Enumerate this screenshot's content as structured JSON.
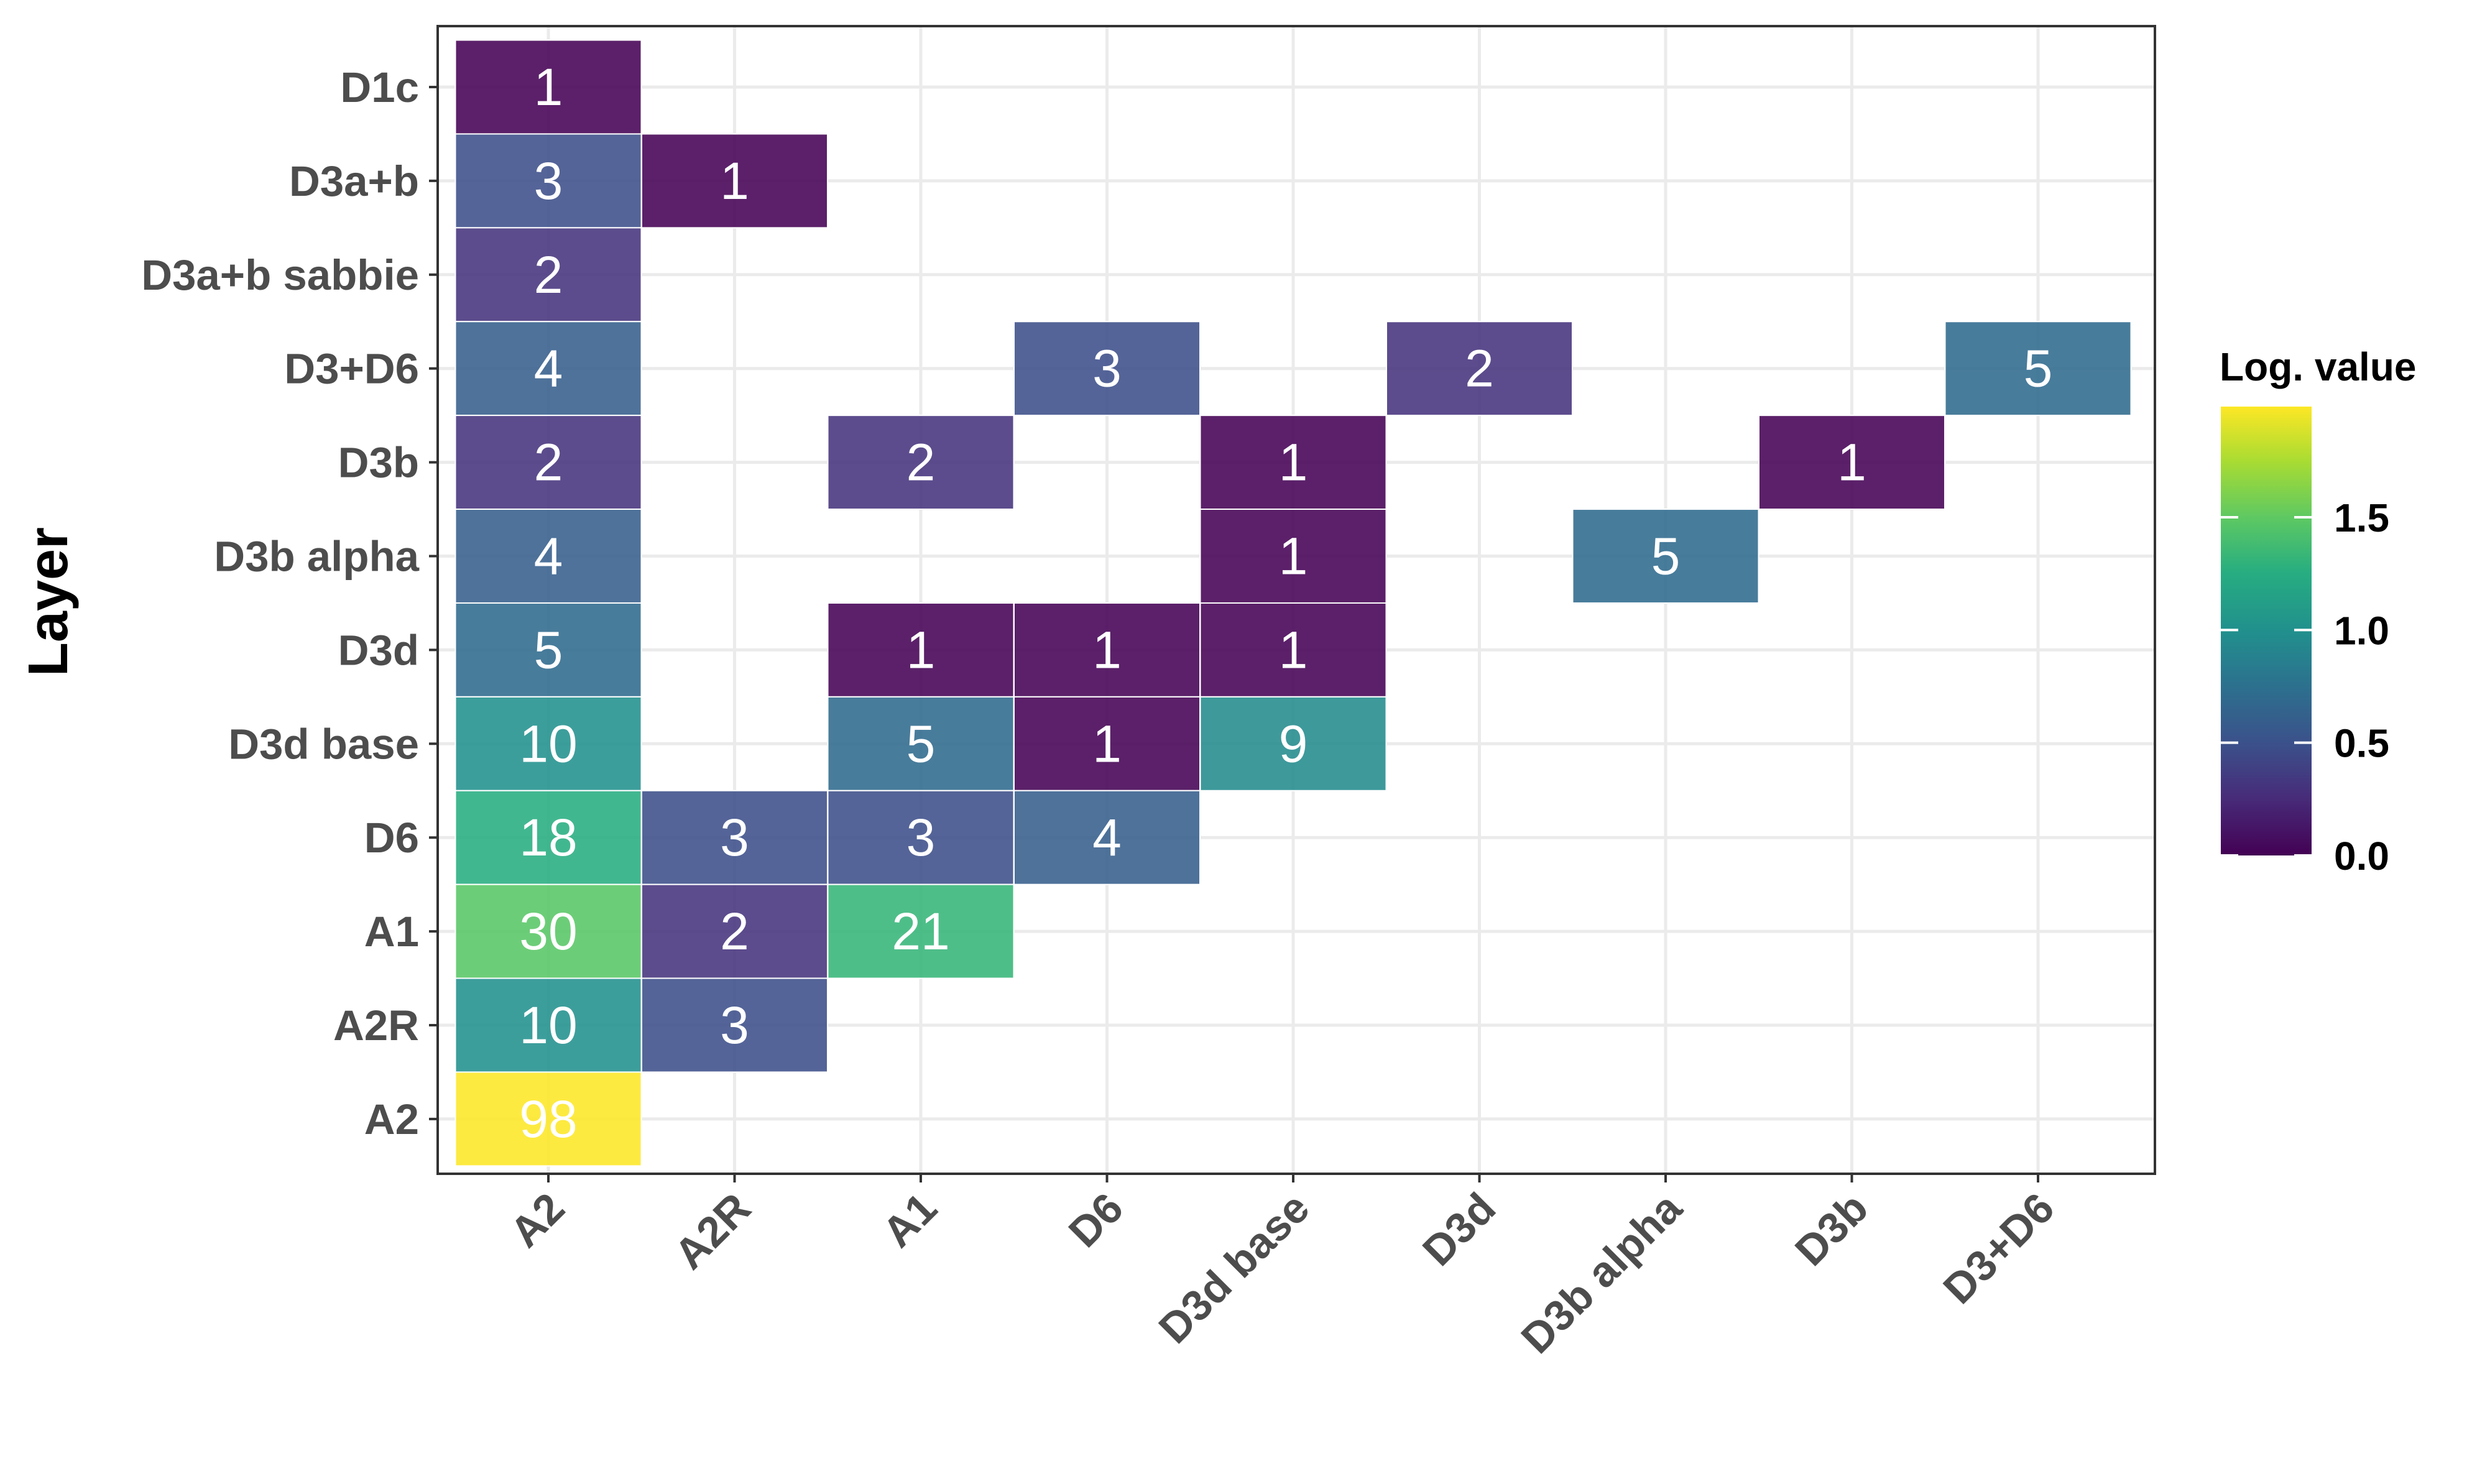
{
  "chart_data": {
    "type": "heatmap",
    "ylabel": "Layer",
    "xlabel": "",
    "x_categories": [
      "A2",
      "A2R",
      "A1",
      "D6",
      "D3d base",
      "D3d",
      "D3b alpha",
      "D3b",
      "D3+D6"
    ],
    "y_categories": [
      "D1c",
      "D3a+b",
      "D3a+b sabbie",
      "D3+D6",
      "D3b",
      "D3b alpha",
      "D3d",
      "D3d base",
      "D6",
      "A1",
      "A2R",
      "A2"
    ],
    "cells": [
      {
        "x": "A2",
        "y": "D1c",
        "value": 1
      },
      {
        "x": "A2",
        "y": "D3a+b",
        "value": 3
      },
      {
        "x": "A2R",
        "y": "D3a+b",
        "value": 1
      },
      {
        "x": "A2",
        "y": "D3a+b sabbie",
        "value": 2
      },
      {
        "x": "A2",
        "y": "D3+D6",
        "value": 4
      },
      {
        "x": "D6",
        "y": "D3+D6",
        "value": 3
      },
      {
        "x": "D3d",
        "y": "D3+D6",
        "value": 2
      },
      {
        "x": "D3+D6",
        "y": "D3+D6",
        "value": 5
      },
      {
        "x": "A2",
        "y": "D3b",
        "value": 2
      },
      {
        "x": "A1",
        "y": "D3b",
        "value": 2
      },
      {
        "x": "D3d base",
        "y": "D3b",
        "value": 1
      },
      {
        "x": "D3b",
        "y": "D3b",
        "value": 1
      },
      {
        "x": "A2",
        "y": "D3b alpha",
        "value": 4
      },
      {
        "x": "D3d base",
        "y": "D3b alpha",
        "value": 1
      },
      {
        "x": "D3b alpha",
        "y": "D3b alpha",
        "value": 5
      },
      {
        "x": "A2",
        "y": "D3d",
        "value": 5
      },
      {
        "x": "A1",
        "y": "D3d",
        "value": 1
      },
      {
        "x": "D6",
        "y": "D3d",
        "value": 1
      },
      {
        "x": "D3d base",
        "y": "D3d",
        "value": 1
      },
      {
        "x": "A2",
        "y": "D3d base",
        "value": 10
      },
      {
        "x": "A1",
        "y": "D3d base",
        "value": 5
      },
      {
        "x": "D6",
        "y": "D3d base",
        "value": 1
      },
      {
        "x": "D3d base",
        "y": "D3d base",
        "value": 9
      },
      {
        "x": "A2",
        "y": "D6",
        "value": 18
      },
      {
        "x": "A2R",
        "y": "D6",
        "value": 3
      },
      {
        "x": "A1",
        "y": "D6",
        "value": 3
      },
      {
        "x": "D6",
        "y": "D6",
        "value": 4
      },
      {
        "x": "A2",
        "y": "A1",
        "value": 30
      },
      {
        "x": "A2R",
        "y": "A1",
        "value": 2
      },
      {
        "x": "A1",
        "y": "A1",
        "value": 21
      },
      {
        "x": "A2",
        "y": "A2R",
        "value": 10
      },
      {
        "x": "A2R",
        "y": "A2R",
        "value": 3
      },
      {
        "x": "A2",
        "y": "A2",
        "value": 98
      }
    ],
    "color_scale": {
      "name": "viridis",
      "transform": "log10",
      "title": "Log. value",
      "min": 0,
      "max": 1.991,
      "ticks": [
        0.0,
        0.5,
        1.0,
        1.5
      ],
      "tick_labels": [
        "0.0",
        "0.5",
        "1.0",
        "1.5"
      ]
    },
    "grid": true,
    "legend_position": "right"
  }
}
